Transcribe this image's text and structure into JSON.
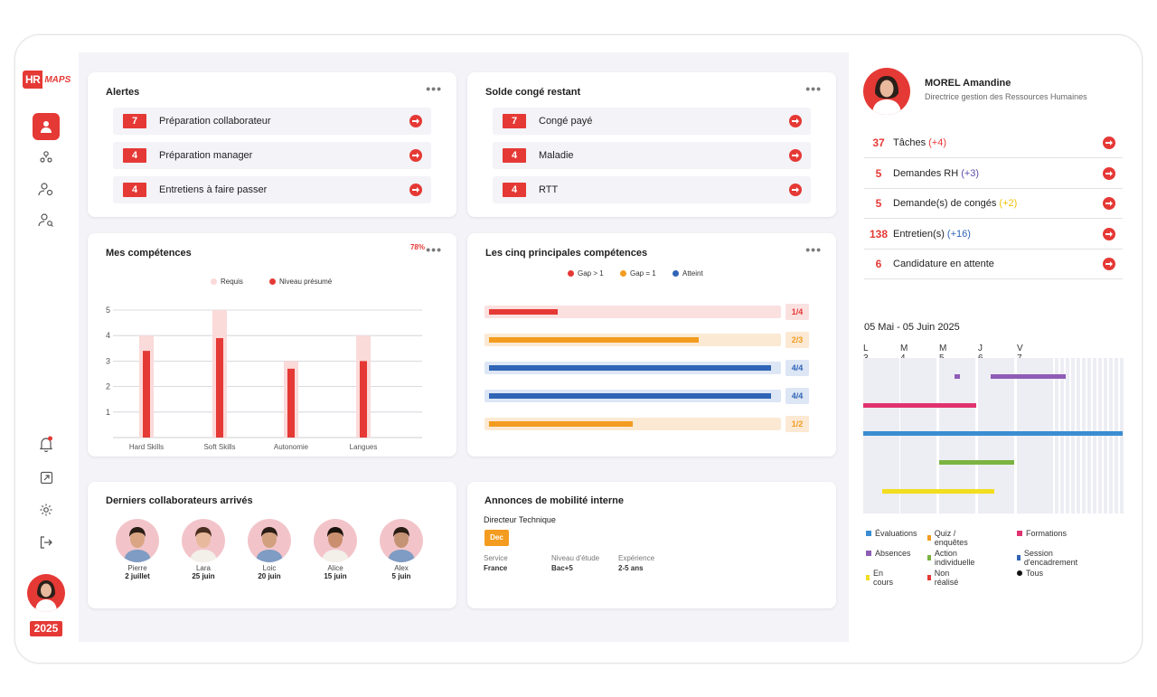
{
  "brand": {
    "logo_left": "HR",
    "logo_right": "MAPS"
  },
  "sidebar": {
    "year": "2025"
  },
  "alerts": {
    "title": "Alertes",
    "items": [
      {
        "count": "7",
        "label": "Préparation collaborateur"
      },
      {
        "count": "4",
        "label": "Préparation manager"
      },
      {
        "count": "4",
        "label": "Entretiens à faire passer"
      }
    ]
  },
  "conges": {
    "title": "Solde congé restant",
    "items": [
      {
        "count": "7",
        "label": "Congé payé"
      },
      {
        "count": "4",
        "label": "Maladie"
      },
      {
        "count": "4",
        "label": "RTT"
      }
    ]
  },
  "competences": {
    "title": "Mes compétences",
    "percent": "78%",
    "legend_required": "Requis",
    "legend_presumed": "Niveau présumé"
  },
  "top5": {
    "title": "Les cinq principales compétences",
    "legend": [
      "Gap > 1",
      "Gap = 1",
      "Atteint"
    ],
    "rows": [
      {
        "label": "1/4",
        "fill": 0.24,
        "color": "#e53935",
        "bg": "#fbe0e0"
      },
      {
        "label": "2/3",
        "fill": 0.73,
        "color": "#f39c1f",
        "bg": "#fbe9d3"
      },
      {
        "label": "4/4",
        "fill": 0.98,
        "color": "#2f64b6",
        "bg": "#dde6f5"
      },
      {
        "label": "4/4",
        "fill": 0.98,
        "color": "#2f64b6",
        "bg": "#dde6f5"
      },
      {
        "label": "1/2",
        "fill": 0.5,
        "color": "#f39c1f",
        "bg": "#fbe9d3"
      }
    ]
  },
  "newcomers": {
    "title": "Derniers collaborateurs arrivés",
    "people": [
      {
        "name": "Pierre",
        "date": "2 juillet"
      },
      {
        "name": "Lara",
        "date": "25 juin"
      },
      {
        "name": "Loic",
        "date": "20 juin"
      },
      {
        "name": "Alice",
        "date": "15 juin"
      },
      {
        "name": "Alex",
        "date": "5 juin"
      }
    ]
  },
  "mobilite": {
    "title": "Annonces de mobilité interne",
    "job": "Directeur Technique",
    "badge": "Dec",
    "fields": [
      {
        "label": "Service",
        "value": "France"
      },
      {
        "label": "Niveau d'étude",
        "value": "Bac+5"
      },
      {
        "label": "Expérience",
        "value": "2-5 ans"
      }
    ]
  },
  "profile": {
    "name": "MOREL Amandine",
    "role": "Directrice gestion des Ressources Humaines"
  },
  "stats": [
    {
      "count": "37",
      "label": "Tâches",
      "delta": "(+4)",
      "delta_color": "#e53935"
    },
    {
      "count": "5",
      "label": "Demandes RH",
      "delta": "(+3)",
      "delta_color": "#5a4fa8"
    },
    {
      "count": "5",
      "label": "Demande(s) de congés",
      "delta": "(+2)",
      "delta_color": "#f2c200"
    },
    {
      "count": "138",
      "label": "Entretien(s)",
      "delta": "(+16)",
      "delta_color": "#2f64b6"
    },
    {
      "count": "6",
      "label": "Candidature en attente",
      "delta": "",
      "delta_color": "#333"
    }
  ],
  "planning": {
    "range": "05 Mai - 05 Juin 2025",
    "days": [
      "L 3",
      "M 4",
      "M 5",
      "J 6",
      "V 7"
    ],
    "legend": [
      {
        "label": "Évaluations",
        "color": "#3a8dd1"
      },
      {
        "label": "Quiz / enquêtes",
        "color": "#f39c1f"
      },
      {
        "label": "Formations",
        "color": "#e0326e"
      },
      {
        "label": "Absences",
        "color": "#8e5cb5"
      },
      {
        "label": "Action individuelle",
        "color": "#7cb342"
      },
      {
        "label": "Session d'encadrement",
        "color": "#2f64b6"
      },
      {
        "label": "En cours",
        "color": "#f2dd1f"
      },
      {
        "label": "Non réalisé",
        "color": "#e53935"
      },
      {
        "label": "Tous",
        "color": "#111111"
      }
    ]
  },
  "chart_data": {
    "type": "bar",
    "categories": [
      "Hard Skills",
      "Soft Skills",
      "Autonomie",
      "Langues"
    ],
    "series": [
      {
        "name": "Requis",
        "values": [
          4,
          5,
          3,
          4
        ]
      },
      {
        "name": "Niveau présumé",
        "values": [
          3.4,
          3.9,
          2.7,
          3.0
        ]
      }
    ],
    "yticks": [
      1,
      2,
      3,
      4,
      5
    ],
    "ylim": [
      0,
      5
    ]
  }
}
